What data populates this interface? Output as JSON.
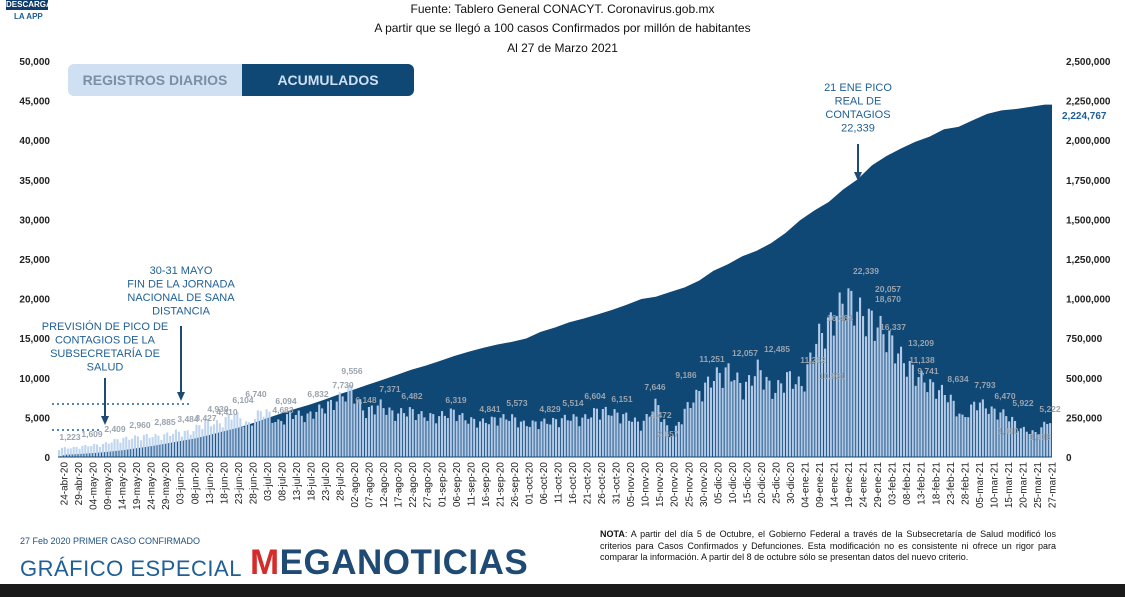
{
  "header": {
    "source": "Fuente: Tablero General CONACYT. Coronavirus.gob.mx",
    "subtitle": "A partir que se llegó a 100 casos Confirmados por millón de habitantes",
    "date": "Al 27 de Marzo 2021"
  },
  "badge": {
    "label": "DESCARGA",
    "sublabel": "LA APP"
  },
  "tabs": {
    "daily": "REGISTROS DIARIOS",
    "accumulated": "ACUMULADOS"
  },
  "chart_data": {
    "type": "bar",
    "left_axis": {
      "ticks": [
        "50,000",
        "45,000",
        "40,000",
        "35,000",
        "30,000",
        "25,000",
        "20,000",
        "15,000",
        "10,000",
        "5,000",
        "0"
      ],
      "range": [
        0,
        50000
      ]
    },
    "right_axis": {
      "ticks": [
        "2,500,000",
        "2,250,000",
        "2,000,000",
        "1,750,000",
        "1,500,000",
        "1,250,000",
        "1,000,000",
        "750,000",
        "500,000",
        "250,000",
        "0"
      ],
      "range": [
        0,
        2500000
      ],
      "current_value": "2,224,767"
    },
    "dates": [
      "24-abr-20",
      "29-abr-20",
      "04-may-20",
      "09-may-20",
      "14-may-20",
      "19-may-20",
      "24-may-20",
      "29-may-20",
      "03-jun-20",
      "08-jun-20",
      "13-jun-20",
      "18-jun-20",
      "23-jun-20",
      "28-jun-20",
      "03-jul-20",
      "08-jul-20",
      "13-jul-20",
      "18-jul-20",
      "23-jul-20",
      "28-jul-20",
      "02-ago-20",
      "07-ago-20",
      "12-ago-20",
      "17-ago-20",
      "22-ago-20",
      "27-ago-20",
      "01-sep-20",
      "06-sep-20",
      "11-sep-20",
      "16-sep-20",
      "21-sep-20",
      "26-sep-20",
      "01-oct-20",
      "06-oct-20",
      "11-oct-20",
      "16-oct-20",
      "21-oct-20",
      "26-oct-20",
      "31-oct-20",
      "05-nov-20",
      "10-nov-20",
      "15-nov-20",
      "20-nov-20",
      "25-nov-20",
      "30-nov-20",
      "05-dic-20",
      "10-dic-20",
      "15-dic-20",
      "20-dic-20",
      "25-dic-20",
      "30-dic-20",
      "04-ene-21",
      "09-ene-21",
      "14-ene-21",
      "19-ene-21",
      "24-ene-21",
      "29-ene-21",
      "03-feb-21",
      "08-feb-21",
      "13-feb-21",
      "18-feb-21",
      "23-feb-21",
      "28-feb-21",
      "05-mar-21",
      "10-mar-21",
      "15-mar-21",
      "20-mar-21",
      "25-mar-21",
      "27-mar-21"
    ],
    "daily_values": [
      1223,
      1300,
      1609,
      1750,
      2409,
      2700,
      2960,
      2885,
      3484,
      3427,
      4930,
      4600,
      6104,
      4410,
      6740,
      4683,
      6094,
      5600,
      6800,
      7730,
      9556,
      6148,
      7371,
      5900,
      6482,
      5700,
      5600,
      6319,
      5200,
      4841,
      5300,
      5573,
      4500,
      4829,
      5000,
      5514,
      5300,
      6604,
      6151,
      5600,
      4472,
      7646,
      2657,
      6700,
      9186,
      11251,
      12057,
      9500,
      12485,
      8900,
      11262,
      9800,
      16484,
      18800,
      22339,
      20057,
      18670,
      16337,
      13209,
      11138,
      9741,
      8634,
      5300,
      7793,
      6470,
      5922,
      3938,
      3300,
      5222
    ],
    "accumulated_values": [
      13842,
      19224,
      25000,
      33000,
      42595,
      56000,
      68620,
      84627,
      101238,
      117103,
      139196,
      162000,
      185122,
      212802,
      245251,
      275003,
      304435,
      331298,
      362274,
      395489,
      424637,
      456000,
      485836,
      517714,
      549734,
      576000,
      606036,
      637509,
      663973,
      688954,
      710049,
      726431,
      748315,
      789780,
      817503,
      851227,
      874171,
      901268,
      929392,
      961938,
      997393,
      1011153,
      1041875,
      1070487,
      1113543,
      1175850,
      1217126,
      1267202,
      1301546,
      1350079,
      1413935,
      1493569,
      1556028,
      1609735,
      1688944,
      1752347,
      1841152,
      1899820,
      1946751,
      1989361,
      2022700,
      2069370,
      2084128,
      2125866,
      2166290,
      2187910,
      2197160,
      2210000,
      2224767
    ],
    "annotations": [
      {
        "text": "21 ENE PICO REAL DE CONTAGIOS 22,339",
        "date": "19-ene-21"
      },
      {
        "text": "30-31 MAYO FIN DE LA JORNADA NACIONAL DE SANA DISTANCIA",
        "date": "31-may-20"
      },
      {
        "text": "PREVISIÓN DE PICO DE CONTAGIOS DE LA SUBSECRETARÍA DE SALUD",
        "date": "08-may-20"
      }
    ],
    "label_values": [
      "1,223",
      "1,609",
      "2,409",
      "2,960",
      "2,885",
      "3,484",
      "3,427",
      "4,930",
      "6,104",
      "4,410",
      "6,740",
      "4,683",
      "6,094",
      "6,832",
      "7,730",
      "9,556",
      "6,148",
      "7,371",
      "6,482",
      "6,319",
      "4,841",
      "5,573",
      "4,829",
      "5,514",
      "6,604",
      "6,151",
      "4,472",
      "7,646",
      "2,657",
      "9,186",
      "11,251",
      "12,057",
      "12,485",
      "11,262",
      "10,931",
      "16,484",
      "22,339",
      "20,057",
      "18,670",
      "16,337",
      "13,209",
      "11,138",
      "9,741",
      "8,634",
      "7,793",
      "6,470",
      "5,922",
      "3,938",
      "3,300",
      "5,222"
    ]
  },
  "annotations": {
    "peak": [
      "21 ENE PICO",
      "REAL DE",
      "CONTAGIOS",
      "22,339"
    ],
    "jornada": [
      "30-31 MAYO",
      "FIN DE LA JORNADA",
      "NACIONAL DE SANA",
      "DISTANCIA"
    ],
    "prevision": [
      "PREVISIÓN DE PICO DE",
      "CONTAGIOS DE LA",
      "SUBSECRETARÍA DE",
      "SALUD"
    ]
  },
  "footer": {
    "first_case": "27 Feb 2020 PRIMER CASO CONFIRMADO",
    "special": "GRÁFICO ESPECIAL",
    "brand_prefix": "",
    "brand_m": "M",
    "brand_rest": "EGANOTICIAS",
    "note_label": "NOTA",
    "note_text": ": A partir del día 5 de Octubre, el Gobierno Federal a través de la Subsecretaría de Salud modificó los criterios para Casos Confirmados y Defunciones. Esta modificación no es consistente ni ofrece un rigor para comparar la información. A partir del 8 de octubre sólo se presentan datos del nuevo criterio."
  },
  "colors": {
    "area": "#0f4775",
    "bar": "#bcd2ee",
    "axis_text": "#222222",
    "annotation": "#1f5f95"
  }
}
